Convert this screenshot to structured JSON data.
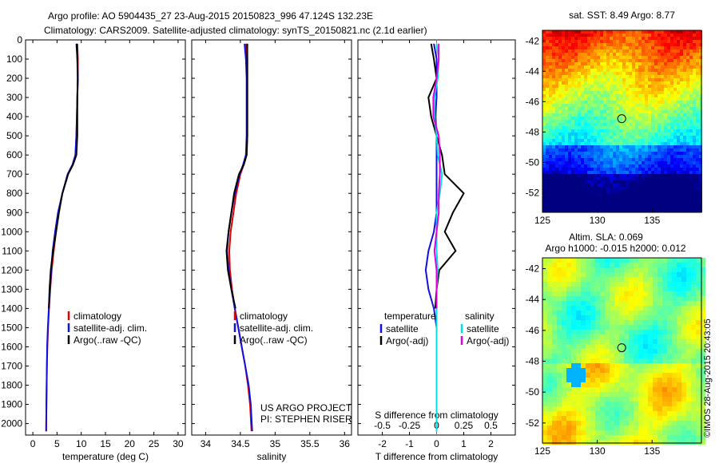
{
  "header": {
    "line1": "Argo profile: AO 5904435_27 23-Aug-2015 20150823_996 47.124S 132.23E",
    "line2": "Climatology: CARS2009. Satellite-adjusted climatology: synTS_20150821.nc (2.1d earlier)"
  },
  "credits": {
    "project": "US ARGO PROJECT",
    "pi": "PI: STEPHEN RISER"
  },
  "side_stamp": "©IMOS 28-Aug-2015 20:43:05",
  "colors": {
    "climatology": "#e00000",
    "satellite": "#1010e0",
    "argo": "#000000",
    "sat_salinity": "#00e0e0",
    "argo_salinity": "#e000e0"
  },
  "chart_data": [
    {
      "type": "line",
      "xlabel": "temperature (deg C)",
      "xlim": [
        -1.5,
        31.5
      ],
      "xticks": [
        0,
        5,
        10,
        15,
        20,
        25,
        30
      ],
      "ylim": [
        0,
        2060
      ],
      "yticks": [
        0,
        100,
        200,
        300,
        400,
        500,
        600,
        700,
        800,
        900,
        1000,
        1100,
        1200,
        1300,
        1400,
        1500,
        1600,
        1700,
        1800,
        1900,
        2000
      ],
      "legend": {
        "position": "lower-right",
        "entries": [
          "climatology",
          "satellite-adj. clim.",
          "Argo(..raw -QC)"
        ]
      },
      "series": [
        {
          "name": "climatology",
          "color": "#e00000",
          "x": [
            9.2,
            9.3,
            9.3,
            9.2,
            9.1,
            9.0,
            8.8,
            8.2,
            7.2,
            6.1,
            5.3,
            4.8,
            4.3,
            3.9,
            3.6,
            3.35,
            3.15,
            3.0,
            2.9,
            2.85,
            2.8,
            2.75
          ],
          "y": [
            20,
            100,
            200,
            300,
            400,
            500,
            600,
            650,
            700,
            800,
            900,
            1000,
            1100,
            1200,
            1300,
            1400,
            1500,
            1600,
            1700,
            1800,
            1900,
            2040
          ]
        },
        {
          "name": "satellite-adj. clim.",
          "color": "#1010e0",
          "x": [
            9.0,
            9.2,
            9.3,
            9.2,
            9.1,
            9.0,
            8.8,
            8.2,
            7.2,
            6.1,
            5.2,
            4.6,
            4.1,
            3.8,
            3.55,
            3.3,
            3.1,
            2.95,
            2.9,
            2.85,
            2.8,
            2.75
          ],
          "y": [
            20,
            100,
            200,
            300,
            400,
            500,
            600,
            650,
            700,
            800,
            900,
            1000,
            1100,
            1200,
            1300,
            1400,
            1500,
            1600,
            1700,
            1800,
            1900,
            2040
          ]
        },
        {
          "name": "Argo(..raw -QC)",
          "color": "#000000",
          "x": [
            9.1,
            9.2,
            9.25,
            9.2,
            9.2,
            9.2,
            9.0,
            8.3,
            7.3,
            6.1,
            5.4,
            4.8,
            4.2,
            3.7,
            3.45,
            3.3
          ],
          "y": [
            20,
            100,
            200,
            300,
            400,
            500,
            600,
            650,
            700,
            800,
            900,
            1000,
            1100,
            1200,
            1300,
            1400
          ]
        }
      ]
    },
    {
      "type": "line",
      "xlabel": "salinity",
      "xlim": [
        33.8,
        36.1
      ],
      "xticks": [
        34,
        34.5,
        35,
        35.5,
        36
      ],
      "ylim": [
        0,
        2060
      ],
      "legend": {
        "position": "lower-right",
        "entries": [
          "climatology",
          "satellite-adj. clim.",
          "Argo(..raw -QC)"
        ]
      },
      "series": [
        {
          "name": "climatology",
          "color": "#e00000",
          "x": [
            34.58,
            34.6,
            34.6,
            34.6,
            34.6,
            34.6,
            34.59,
            34.55,
            34.5,
            34.44,
            34.4,
            34.36,
            34.34,
            34.35,
            34.38,
            34.42,
            34.47,
            34.52,
            34.57,
            34.61,
            34.64,
            34.66
          ],
          "y": [
            20,
            100,
            200,
            300,
            400,
            500,
            600,
            650,
            700,
            800,
            900,
            1000,
            1100,
            1200,
            1300,
            1400,
            1500,
            1600,
            1700,
            1800,
            1900,
            2040
          ]
        },
        {
          "name": "satellite-adj. clim.",
          "color": "#1010e0",
          "x": [
            34.56,
            34.58,
            34.59,
            34.59,
            34.59,
            34.59,
            34.58,
            34.54,
            34.49,
            34.42,
            34.37,
            34.33,
            34.31,
            34.33,
            34.37,
            34.42,
            34.47,
            34.52,
            34.57,
            34.62,
            34.65,
            34.67
          ],
          "y": [
            20,
            100,
            200,
            300,
            400,
            500,
            600,
            650,
            700,
            800,
            900,
            1000,
            1100,
            1200,
            1300,
            1400,
            1500,
            1600,
            1700,
            1800,
            1900,
            2040
          ]
        },
        {
          "name": "Argo(..raw -QC)",
          "color": "#000000",
          "x": [
            34.6,
            34.6,
            34.6,
            34.6,
            34.6,
            34.6,
            34.59,
            34.55,
            34.48,
            34.41,
            34.37,
            34.33,
            34.3,
            34.32,
            34.37,
            34.43
          ],
          "y": [
            20,
            100,
            200,
            300,
            400,
            500,
            600,
            650,
            700,
            800,
            900,
            1000,
            1100,
            1200,
            1300,
            1400
          ]
        }
      ]
    },
    {
      "type": "line",
      "xlabel": "T difference from climatology",
      "x2label": "S difference from climatology",
      "xlim": [
        -2.9,
        2.9
      ],
      "xticks": [
        -2,
        -1,
        0,
        1,
        2
      ],
      "x2lim": [
        -0.725,
        0.725
      ],
      "x2ticks": [
        -0.5,
        -0.25,
        0,
        0.25,
        0.5
      ],
      "ylim": [
        0,
        2060
      ],
      "legend": {
        "position": "lower",
        "groups": [
          {
            "title": "temperature",
            "entries": [
              "satellite",
              "Argo(-adj)"
            ]
          },
          {
            "title": "salinity",
            "entries": [
              "satellite",
              "Argo(-adj)"
            ]
          }
        ]
      },
      "series": [
        {
          "name": "satellite",
          "group": "temperature",
          "color": "#1010e0",
          "x": [
            -0.1,
            0.0,
            0.0,
            0.0,
            -0.05,
            0.0,
            0.0,
            0.0,
            0.0,
            0.0,
            -0.1,
            -0.3,
            -0.4,
            -0.3,
            -0.1,
            0.0,
            0.0,
            0.0,
            0.0,
            0.0,
            0.0
          ],
          "y": [
            20,
            100,
            200,
            300,
            400,
            500,
            600,
            700,
            800,
            900,
            1000,
            1100,
            1200,
            1300,
            1400,
            1500,
            1600,
            1700,
            1800,
            1900,
            2040
          ]
        },
        {
          "name": "Argo(-adj)",
          "group": "temperature",
          "color": "#000000",
          "x": [
            -0.2,
            -0.1,
            0.0,
            -0.3,
            -0.2,
            0.0,
            0.2,
            0.3,
            1.0,
            0.6,
            0.3,
            0.7,
            0.1,
            0.0,
            -0.05
          ],
          "y": [
            20,
            100,
            200,
            300,
            400,
            500,
            600,
            700,
            800,
            900,
            1000,
            1100,
            1200,
            1300,
            1400
          ]
        },
        {
          "name": "satellite",
          "group": "salinity",
          "color": "#00e0e0",
          "x": [
            0.0,
            0.02,
            0.01,
            -0.02,
            -0.02,
            0.0,
            0.01,
            0.05,
            0.03,
            0.0,
            0.0,
            0.0,
            0.01,
            0.0,
            0.0,
            0.0,
            0.0,
            0.0,
            0.0,
            0.0,
            0.0
          ],
          "y": [
            20,
            100,
            200,
            300,
            400,
            500,
            600,
            700,
            800,
            900,
            1000,
            1100,
            1200,
            1300,
            1400,
            1500,
            1600,
            1700,
            1800,
            1900,
            2040
          ]
        },
        {
          "name": "Argo(-adj)",
          "group": "salinity",
          "color": "#e000e0",
          "x": [
            0.02,
            0.02,
            0.0,
            -0.03,
            -0.03,
            0.02,
            0.03,
            0.03,
            0.02,
            0.02,
            0.0,
            -0.02,
            0.0,
            0.0,
            0.0
          ],
          "y": [
            20,
            100,
            200,
            300,
            400,
            500,
            600,
            700,
            800,
            900,
            1000,
            1100,
            1200,
            1300,
            1400
          ]
        }
      ]
    },
    {
      "type": "heatmap",
      "title": "sat. SST: 8.49  Argo: 8.77",
      "xlim": [
        125,
        139.5
      ],
      "ylim": [
        -53.3,
        -41.3
      ],
      "xticks": [
        125,
        130,
        135
      ],
      "yticks": [
        -42,
        -44,
        -46,
        -48,
        -50,
        -52
      ],
      "marker": {
        "lon": 132.23,
        "lat": -47.124
      },
      "colormap": "jet"
    },
    {
      "type": "heatmap",
      "title": "Altim. SLA: 0.069",
      "subtitle": "Argo h1000: -0.015  h2000: 0.012",
      "xlim": [
        125,
        139.5
      ],
      "ylim": [
        -53.3,
        -41.3
      ],
      "xticks": [
        125,
        130,
        135
      ],
      "yticks": [
        -42,
        -44,
        -46,
        -48,
        -50,
        -52
      ],
      "marker": {
        "lon": 132.23,
        "lat": -47.124
      },
      "colormap": "jet"
    }
  ]
}
